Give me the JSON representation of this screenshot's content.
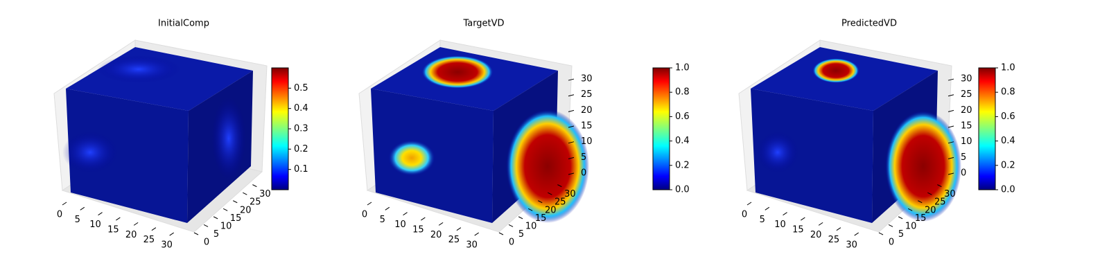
{
  "chart_data": [
    {
      "type": "voxel3d",
      "title": "InitialComp",
      "colormap": "jet",
      "xlim": [
        0,
        32
      ],
      "xticks": [
        0,
        5,
        10,
        15,
        20,
        25,
        30
      ],
      "ylim": [
        0,
        32
      ],
      "yticks": [
        0,
        5,
        10,
        15,
        20,
        25,
        30
      ],
      "clim": [
        0,
        0.6
      ],
      "cticks": [
        0.1,
        0.2,
        0.3,
        0.4,
        0.5
      ]
    },
    {
      "type": "voxel3d",
      "title": "TargetVD",
      "colormap": "jet",
      "xlim": [
        0,
        32
      ],
      "xticks": [
        0,
        5,
        10,
        15,
        20,
        25,
        30
      ],
      "ylim": [
        0,
        32
      ],
      "yticks": [
        0,
        5,
        10,
        15,
        20,
        25,
        30
      ],
      "zlim": [
        0,
        32
      ],
      "zticks": [
        0,
        5,
        10,
        15,
        20,
        25,
        30
      ],
      "clim": [
        0,
        1
      ],
      "cticks": [
        {
          "value": 0,
          "label": "0.0"
        },
        0.2,
        0.4,
        0.6,
        0.8,
        {
          "value": 1,
          "label": "1.0"
        }
      ]
    },
    {
      "type": "voxel3d",
      "title": "PredictedVD",
      "colormap": "jet",
      "xlim": [
        0,
        32
      ],
      "xticks": [
        0,
        5,
        10,
        15,
        20,
        25,
        30
      ],
      "ylim": [
        0,
        32
      ],
      "yticks": [
        0,
        5,
        10,
        15,
        20,
        25,
        30
      ],
      "zlim": [
        0,
        32
      ],
      "zticks": [
        0,
        5,
        10,
        15,
        20,
        25,
        30
      ],
      "clim": [
        0,
        1
      ],
      "cticks": [
        {
          "value": 0,
          "label": "0.0"
        },
        0.2,
        0.4,
        0.6,
        0.8,
        {
          "value": 1,
          "label": "1.0"
        }
      ]
    }
  ]
}
